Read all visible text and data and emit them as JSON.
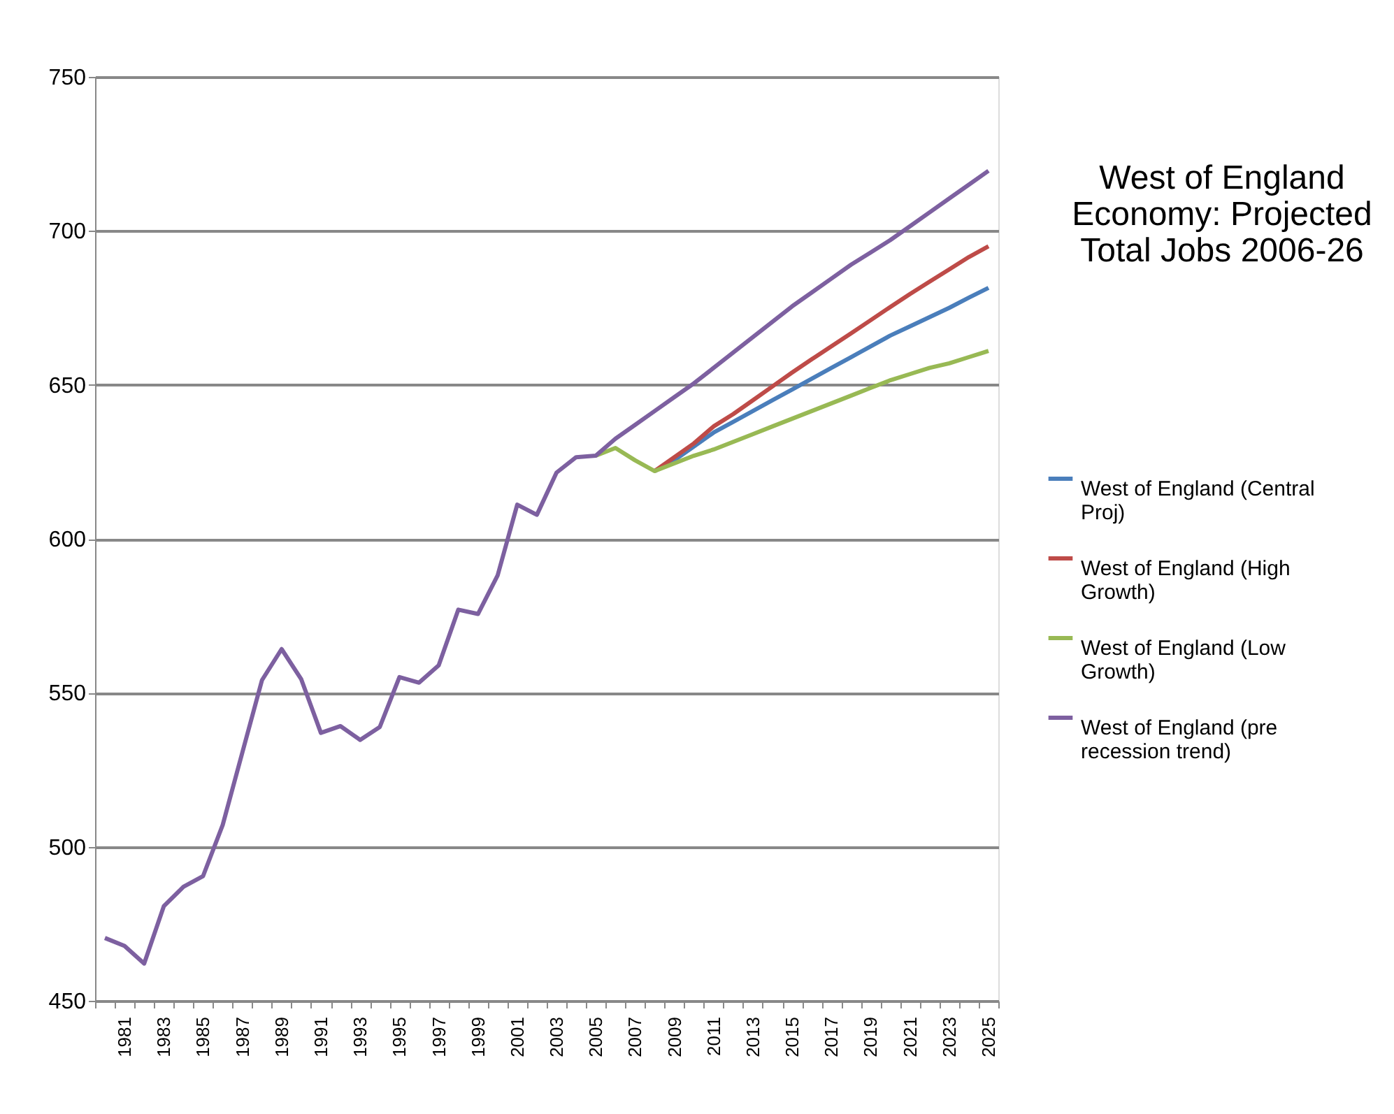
{
  "chart_data": {
    "type": "line",
    "title": "West of England Economy: Projected Total Jobs 2006-26",
    "categories": [
      null,
      "1981",
      null,
      "1983",
      null,
      "1985",
      null,
      "1987",
      null,
      "1989",
      null,
      "1991",
      null,
      "1993",
      null,
      "1995",
      null,
      "1997",
      null,
      "1999",
      null,
      "2001",
      null,
      "2003",
      null,
      "2005",
      null,
      "2007",
      null,
      "2009",
      null,
      "2011",
      null,
      "2013",
      null,
      "2015",
      null,
      "2017",
      null,
      "2019",
      null,
      "2021",
      null,
      "2023",
      null,
      "2025"
    ],
    "series": [
      {
        "name": "West of England (Central Proj)",
        "color": "#4a7ebb",
        "values": [
          null,
          null,
          null,
          null,
          null,
          null,
          null,
          null,
          null,
          null,
          null,
          null,
          null,
          null,
          null,
          null,
          null,
          null,
          null,
          null,
          null,
          null,
          null,
          null,
          null,
          null,
          null,
          null,
          622,
          625.5,
          630,
          634.5,
          638,
          641.5,
          645,
          648.5,
          652,
          655.5,
          659,
          662.5,
          666,
          669,
          672,
          675,
          678.3,
          681.5
        ]
      },
      {
        "name": "West of England (High Growth)",
        "color": "#be4b48",
        "values": [
          null,
          null,
          null,
          null,
          null,
          null,
          null,
          null,
          null,
          null,
          null,
          null,
          null,
          null,
          null,
          null,
          null,
          null,
          null,
          null,
          null,
          null,
          null,
          null,
          null,
          null,
          null,
          null,
          622,
          626.5,
          631,
          636.5,
          640.5,
          645,
          649.5,
          654,
          658.3,
          662.5,
          666.7,
          671,
          675.3,
          679.5,
          683.5,
          687.5,
          691.5,
          695
        ]
      },
      {
        "name": "West of England (Low Growth)",
        "color": "#98b954",
        "values": [
          null,
          null,
          null,
          null,
          null,
          null,
          null,
          null,
          null,
          null,
          null,
          null,
          null,
          null,
          null,
          null,
          null,
          null,
          null,
          null,
          null,
          null,
          null,
          null,
          null,
          627,
          629.5,
          625.5,
          622,
          624.5,
          627,
          629,
          631.5,
          634,
          636.5,
          639,
          641.5,
          644,
          646.5,
          649,
          651.5,
          653.5,
          655.5,
          657,
          659,
          661
        ]
      },
      {
        "name": "West of England (pre recession trend)",
        "color": "#7d60a0",
        "values": [
          470.4,
          467.8,
          462.1,
          480.7,
          487,
          490.5,
          507.1,
          530.6,
          554.1,
          564.2,
          554.4,
          537,
          539.2,
          534.7,
          538.9,
          555.1,
          553.3,
          558.9,
          577,
          575.6,
          588.1,
          611.1,
          607.8,
          621.5,
          626.5,
          627,
          632.5,
          637,
          641.5,
          646,
          650.5,
          655.5,
          660.5,
          665.5,
          670.5,
          675.5,
          680,
          684.5,
          689,
          693,
          697,
          701.5,
          706,
          710.5,
          715,
          719.5
        ]
      }
    ],
    "ylim": [
      450,
      750
    ],
    "yticks": [
      450,
      500,
      550,
      600,
      650,
      700,
      750
    ],
    "grid": "y",
    "legend": "right",
    "line_style": "solid",
    "marker": "none"
  }
}
